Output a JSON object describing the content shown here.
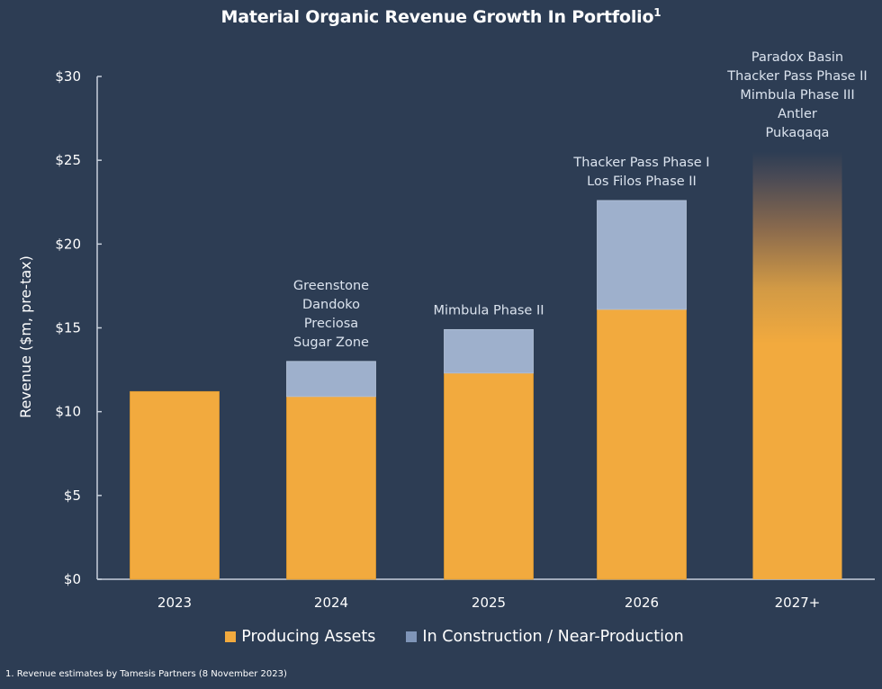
{
  "chart_data": {
    "type": "bar",
    "stacked": true,
    "title": "Material Organic Revenue Growth In Portfolio",
    "title_superscript": "1",
    "xlabel": "",
    "ylabel": "Revenue ($m, pre-tax)",
    "ylim": [
      0,
      30
    ],
    "yticks": [
      0,
      5,
      10,
      15,
      20,
      25,
      30
    ],
    "ytick_labels": [
      "$0",
      "$5",
      "$10",
      "$15",
      "$20",
      "$25",
      "$30"
    ],
    "grid": false,
    "legend_position": "bottom",
    "categories": [
      "2023",
      "2024",
      "2025",
      "2026",
      "2027+"
    ],
    "series": [
      {
        "name": "Producing Assets",
        "color": "#f2aa3e",
        "values": [
          11.2,
          10.9,
          12.3,
          16.1,
          25.5
        ]
      },
      {
        "name": "In Construction / Near-Production",
        "color": "#9eb0cc",
        "values": [
          0,
          2.1,
          2.6,
          6.5,
          0
        ]
      }
    ],
    "gradient_fade_last_bar": true,
    "annotations": [
      {
        "category": "2023",
        "lines": []
      },
      {
        "category": "2024",
        "lines": [
          "Greenstone",
          "Dandoko",
          "Preciosa",
          "Sugar Zone"
        ]
      },
      {
        "category": "2025",
        "lines": [
          "Mimbula Phase II"
        ]
      },
      {
        "category": "2026",
        "lines": [
          "Thacker Pass Phase I",
          "Los Filos Phase II"
        ]
      },
      {
        "category": "2027+",
        "lines": [
          "Paradox Basin",
          "Thacker Pass Phase II",
          "Mimbula Phase III",
          "Antler",
          "Pukaqaqa"
        ]
      }
    ]
  },
  "colors": {
    "background": "#2d3d54",
    "axis": "#c8d0dc",
    "producing": "#f2aa3e",
    "construction": "#9eb0cc",
    "legend_construction_swatch": "#7f95b8"
  },
  "legend": {
    "items": [
      {
        "label": "Producing Assets"
      },
      {
        "label": "In Construction / Near-Production"
      }
    ]
  },
  "footnote": "1. Revenue estimates by Tamesis Partners (8 November 2023)"
}
